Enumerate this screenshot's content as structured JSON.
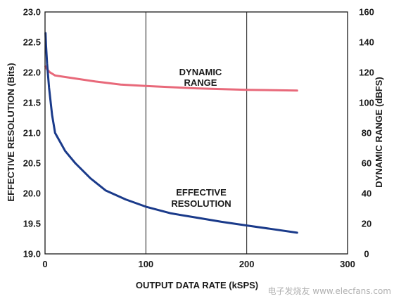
{
  "chart_data": {
    "type": "line",
    "title": "",
    "xlabel": "OUTPUT DATA RATE (kSPS)",
    "ylabel_left": "EFFECTIVE RESOLUTION (Bits)",
    "ylabel_right": "DYNAMIC RANGE (dBFS)",
    "xlim": [
      0,
      300
    ],
    "ylim_left": [
      19.0,
      23.0
    ],
    "ylim_right": [
      0,
      160
    ],
    "x_ticks": [
      "0",
      "100",
      "200",
      "300"
    ],
    "y_left_ticks": [
      "19.0",
      "19.5",
      "20.0",
      "20.5",
      "21.0",
      "21.5",
      "22.0",
      "22.5",
      "23.0"
    ],
    "y_right_ticks": [
      "0",
      "20",
      "40",
      "60",
      "80",
      "100",
      "120",
      "140",
      "160"
    ],
    "grid": "x-major only",
    "series": [
      {
        "name": "DYNAMIC RANGE",
        "axis": "right",
        "color": "#e8697a",
        "x": [
          0.5,
          2,
          5,
          10,
          20,
          30,
          50,
          75,
          100,
          150,
          200,
          250
        ],
        "y": [
          124,
          122,
          120,
          118,
          117,
          116,
          114,
          112,
          111,
          109.5,
          108.5,
          108
        ]
      },
      {
        "name": "EFFECTIVE RESOLUTION",
        "axis": "left",
        "color": "#1a3a8a",
        "x": [
          0.5,
          1,
          2,
          4,
          7,
          10,
          15,
          20,
          30,
          45,
          60,
          80,
          100,
          125,
          150,
          175,
          200,
          225,
          250
        ],
        "y": [
          22.65,
          22.45,
          22.15,
          21.75,
          21.3,
          21.0,
          20.85,
          20.7,
          20.5,
          20.25,
          20.05,
          19.9,
          19.78,
          19.67,
          19.6,
          19.53,
          19.47,
          19.41,
          19.35
        ]
      }
    ],
    "annotations": [
      {
        "lines": [
          "DYNAMIC",
          "RANGE"
        ],
        "series": "DYNAMIC RANGE"
      },
      {
        "lines": [
          "EFFECTIVE",
          "RESOLUTION"
        ],
        "series": "EFFECTIVE RESOLUTION"
      }
    ]
  },
  "watermark": "电子发烧友 www.elecfans.com",
  "colors": {
    "frame": "#1a1a1a",
    "grid": "#1a1a1a"
  }
}
